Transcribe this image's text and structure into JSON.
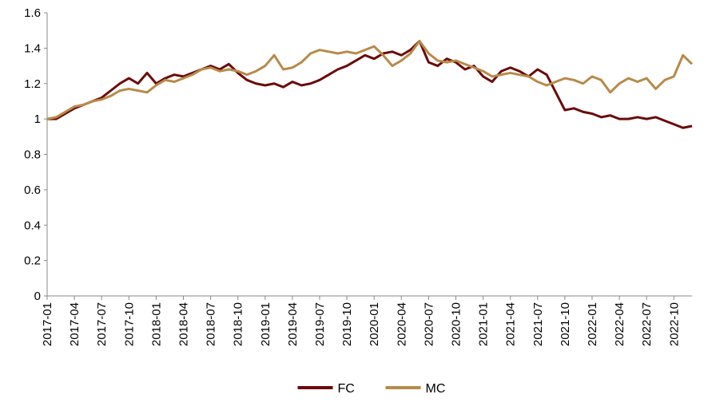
{
  "chart_data": {
    "type": "line",
    "title": "",
    "xlabel": "",
    "ylabel": "",
    "ylim": [
      0,
      1.6
    ],
    "y_ticks": [
      "0",
      "0.2",
      "0.4",
      "0.6",
      "0.8",
      "1",
      "1.2",
      "1.4",
      "1.6"
    ],
    "x_ticks": [
      "2017-01",
      "2017-04",
      "2017-07",
      "2017-10",
      "2018-01",
      "2018-04",
      "2018-07",
      "2018-10",
      "2019-01",
      "2019-04",
      "2019-07",
      "2019-10",
      "2020-01",
      "2020-04",
      "2020-07",
      "2020-10",
      "2021-01",
      "2021-04",
      "2021-07",
      "2021-10",
      "2022-01",
      "2022-04",
      "2022-07",
      "2022-10"
    ],
    "x_end": "2022-12",
    "grid": false,
    "legend_position": "bottom-center",
    "series": [
      {
        "name": "FC",
        "color": "#6b0a0a",
        "points": [
          [
            "2017-01",
            1.0
          ],
          [
            "2017-02",
            1.0
          ],
          [
            "2017-03",
            1.03
          ],
          [
            "2017-04",
            1.06
          ],
          [
            "2017-05",
            1.08
          ],
          [
            "2017-06",
            1.1
          ],
          [
            "2017-07",
            1.12
          ],
          [
            "2017-08",
            1.16
          ],
          [
            "2017-09",
            1.2
          ],
          [
            "2017-10",
            1.23
          ],
          [
            "2017-11",
            1.2
          ],
          [
            "2017-12",
            1.26
          ],
          [
            "2018-01",
            1.2
          ],
          [
            "2018-02",
            1.23
          ],
          [
            "2018-03",
            1.25
          ],
          [
            "2018-04",
            1.24
          ],
          [
            "2018-05",
            1.26
          ],
          [
            "2018-06",
            1.28
          ],
          [
            "2018-07",
            1.3
          ],
          [
            "2018-08",
            1.28
          ],
          [
            "2018-09",
            1.31
          ],
          [
            "2018-10",
            1.26
          ],
          [
            "2018-11",
            1.22
          ],
          [
            "2018-12",
            1.2
          ],
          [
            "2019-01",
            1.19
          ],
          [
            "2019-02",
            1.2
          ],
          [
            "2019-03",
            1.18
          ],
          [
            "2019-04",
            1.21
          ],
          [
            "2019-05",
            1.19
          ],
          [
            "2019-06",
            1.2
          ],
          [
            "2019-07",
            1.22
          ],
          [
            "2019-08",
            1.25
          ],
          [
            "2019-09",
            1.28
          ],
          [
            "2019-10",
            1.3
          ],
          [
            "2019-11",
            1.33
          ],
          [
            "2019-12",
            1.36
          ],
          [
            "2020-01",
            1.34
          ],
          [
            "2020-02",
            1.37
          ],
          [
            "2020-03",
            1.38
          ],
          [
            "2020-04",
            1.36
          ],
          [
            "2020-05",
            1.39
          ],
          [
            "2020-06",
            1.44
          ],
          [
            "2020-07",
            1.32
          ],
          [
            "2020-08",
            1.3
          ],
          [
            "2020-09",
            1.34
          ],
          [
            "2020-10",
            1.32
          ],
          [
            "2020-11",
            1.28
          ],
          [
            "2020-12",
            1.3
          ],
          [
            "2021-01",
            1.24
          ],
          [
            "2021-02",
            1.21
          ],
          [
            "2021-03",
            1.27
          ],
          [
            "2021-04",
            1.29
          ],
          [
            "2021-05",
            1.27
          ],
          [
            "2021-06",
            1.24
          ],
          [
            "2021-07",
            1.28
          ],
          [
            "2021-08",
            1.25
          ],
          [
            "2021-09",
            1.15
          ],
          [
            "2021-10",
            1.05
          ],
          [
            "2021-11",
            1.06
          ],
          [
            "2021-12",
            1.04
          ],
          [
            "2022-01",
            1.03
          ],
          [
            "2022-02",
            1.01
          ],
          [
            "2022-03",
            1.02
          ],
          [
            "2022-04",
            1.0
          ],
          [
            "2022-05",
            1.0
          ],
          [
            "2022-06",
            1.01
          ],
          [
            "2022-07",
            1.0
          ],
          [
            "2022-08",
            1.01
          ],
          [
            "2022-09",
            0.99
          ],
          [
            "2022-10",
            0.97
          ],
          [
            "2022-11",
            0.95
          ],
          [
            "2022-12",
            0.96
          ]
        ]
      },
      {
        "name": "MC",
        "color": "#b88a4a",
        "points": [
          [
            "2017-01",
            1.0
          ],
          [
            "2017-02",
            1.01
          ],
          [
            "2017-03",
            1.04
          ],
          [
            "2017-04",
            1.07
          ],
          [
            "2017-05",
            1.08
          ],
          [
            "2017-06",
            1.1
          ],
          [
            "2017-07",
            1.11
          ],
          [
            "2017-08",
            1.13
          ],
          [
            "2017-09",
            1.16
          ],
          [
            "2017-10",
            1.17
          ],
          [
            "2017-11",
            1.16
          ],
          [
            "2017-12",
            1.15
          ],
          [
            "2018-01",
            1.19
          ],
          [
            "2018-02",
            1.22
          ],
          [
            "2018-03",
            1.21
          ],
          [
            "2018-04",
            1.23
          ],
          [
            "2018-05",
            1.25
          ],
          [
            "2018-06",
            1.28
          ],
          [
            "2018-07",
            1.29
          ],
          [
            "2018-08",
            1.27
          ],
          [
            "2018-09",
            1.28
          ],
          [
            "2018-10",
            1.27
          ],
          [
            "2018-11",
            1.25
          ],
          [
            "2018-12",
            1.27
          ],
          [
            "2019-01",
            1.3
          ],
          [
            "2019-02",
            1.36
          ],
          [
            "2019-03",
            1.28
          ],
          [
            "2019-04",
            1.29
          ],
          [
            "2019-05",
            1.32
          ],
          [
            "2019-06",
            1.37
          ],
          [
            "2019-07",
            1.39
          ],
          [
            "2019-08",
            1.38
          ],
          [
            "2019-09",
            1.37
          ],
          [
            "2019-10",
            1.38
          ],
          [
            "2019-11",
            1.37
          ],
          [
            "2019-12",
            1.39
          ],
          [
            "2020-01",
            1.41
          ],
          [
            "2020-02",
            1.36
          ],
          [
            "2020-03",
            1.3
          ],
          [
            "2020-04",
            1.33
          ],
          [
            "2020-05",
            1.37
          ],
          [
            "2020-06",
            1.44
          ],
          [
            "2020-07",
            1.37
          ],
          [
            "2020-08",
            1.33
          ],
          [
            "2020-09",
            1.32
          ],
          [
            "2020-10",
            1.33
          ],
          [
            "2020-11",
            1.31
          ],
          [
            "2020-12",
            1.29
          ],
          [
            "2021-01",
            1.27
          ],
          [
            "2021-02",
            1.24
          ],
          [
            "2021-03",
            1.25
          ],
          [
            "2021-04",
            1.26
          ],
          [
            "2021-05",
            1.25
          ],
          [
            "2021-06",
            1.24
          ],
          [
            "2021-07",
            1.21
          ],
          [
            "2021-08",
            1.19
          ],
          [
            "2021-09",
            1.21
          ],
          [
            "2021-10",
            1.23
          ],
          [
            "2021-11",
            1.22
          ],
          [
            "2021-12",
            1.2
          ],
          [
            "2022-01",
            1.24
          ],
          [
            "2022-02",
            1.22
          ],
          [
            "2022-03",
            1.15
          ],
          [
            "2022-04",
            1.2
          ],
          [
            "2022-05",
            1.23
          ],
          [
            "2022-06",
            1.21
          ],
          [
            "2022-07",
            1.23
          ],
          [
            "2022-08",
            1.17
          ],
          [
            "2022-09",
            1.22
          ],
          [
            "2022-10",
            1.24
          ],
          [
            "2022-11",
            1.36
          ],
          [
            "2022-12",
            1.31
          ]
        ]
      }
    ]
  }
}
